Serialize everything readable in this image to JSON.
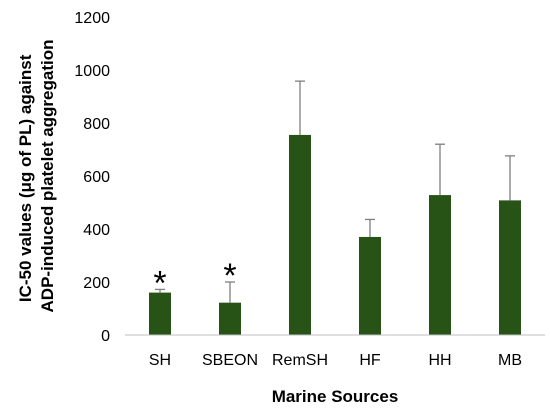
{
  "chart_data": {
    "type": "bar",
    "categories": [
      "SH",
      "SBEON",
      "RemSH",
      "HF",
      "HH",
      "MB"
    ],
    "values": [
      160,
      122,
      755,
      370,
      528,
      508
    ],
    "errors": [
      12,
      78,
      203,
      66,
      192,
      168
    ],
    "annotations": [
      "*",
      "*",
      "",
      "",
      "",
      ""
    ],
    "xlabel": "Marine Sources",
    "ylabel": [
      "IC-50 values (μg of PL) against",
      "ADP-induced platelet aggregation"
    ],
    "ylim": [
      0,
      1200
    ],
    "yticks": [
      0,
      200,
      400,
      600,
      800,
      1000,
      1200
    ],
    "grid": false,
    "bar_color": "#275317",
    "error_bar_color": "#7f7f7f"
  }
}
